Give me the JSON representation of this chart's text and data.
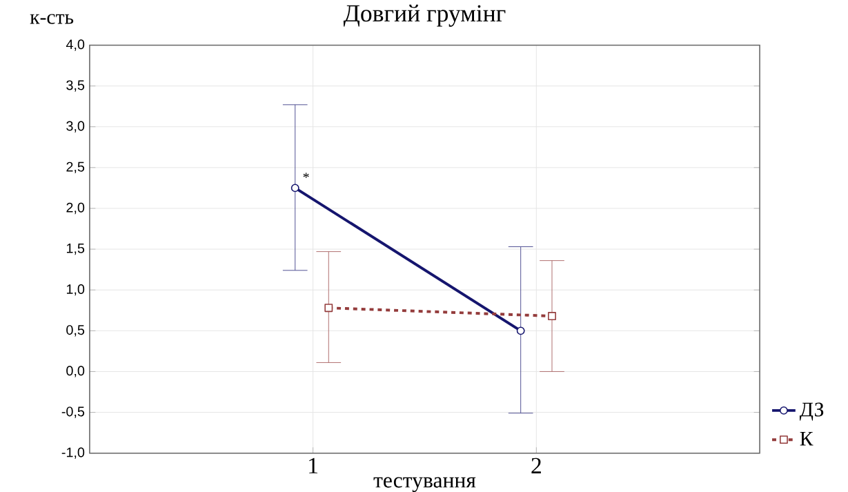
{
  "chart_data": {
    "type": "line",
    "title": "Довгий грумінг",
    "xlabel": "тестування",
    "ylabel": "к-сть",
    "xlim": [
      0,
      3
    ],
    "ylim": [
      -1,
      4
    ],
    "xticks": [
      1,
      2
    ],
    "yticks": [
      {
        "value": -1,
        "label": "-1,0"
      },
      {
        "value": -0.5,
        "label": "-0,5"
      },
      {
        "value": 0,
        "label": "0,0"
      },
      {
        "value": 0.5,
        "label": "0,5"
      },
      {
        "value": 1,
        "label": "1,0"
      },
      {
        "value": 1.5,
        "label": "1,5"
      },
      {
        "value": 2,
        "label": "2,0"
      },
      {
        "value": 2.5,
        "label": "2,5"
      },
      {
        "value": 3,
        "label": "3,0"
      },
      {
        "value": 3.5,
        "label": "3,5"
      },
      {
        "value": 4,
        "label": "4,0"
      }
    ],
    "grid": true,
    "legend": "bottom right",
    "series": [
      {
        "name": "ДЗ",
        "color": "#15156e",
        "x": [
          0.92,
          1.93
        ],
        "values": [
          2.25,
          0.5
        ],
        "errors": [
          [
            1.24,
            3.27
          ],
          [
            -0.51,
            1.53
          ]
        ],
        "marker": "circle",
        "line_style": "solid"
      },
      {
        "name": "К",
        "color": "#943c3c",
        "x": [
          1.07,
          2.07
        ],
        "values": [
          0.78,
          0.68
        ],
        "errors": [
          [
            0.11,
            1.47
          ],
          [
            0.0,
            1.36
          ]
        ],
        "marker": "square",
        "line_style": "dashed"
      }
    ],
    "annotations": [
      {
        "text": "*",
        "x": 0.92,
        "y": 2.25
      }
    ]
  }
}
